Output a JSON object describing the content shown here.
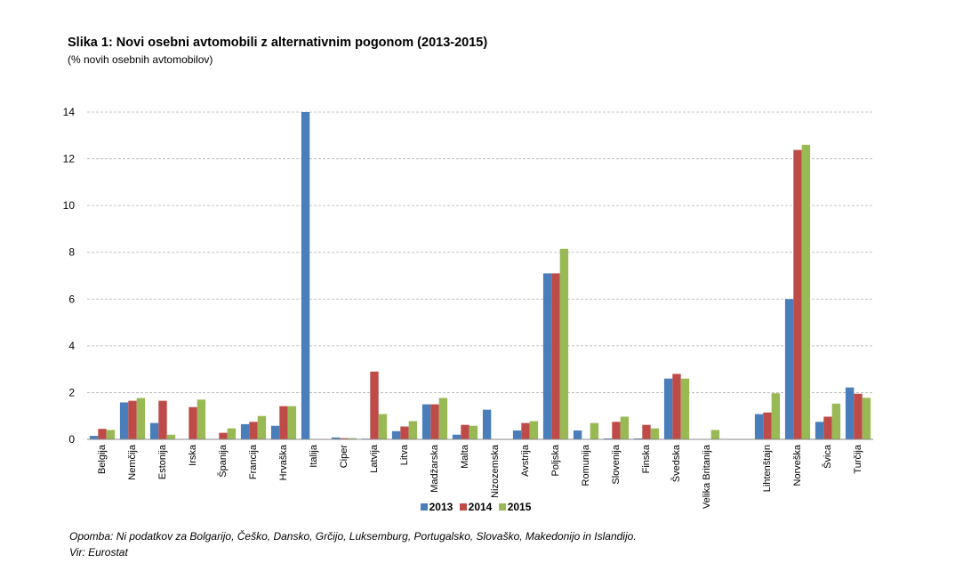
{
  "title": "Slika 1: Novi osebni avtomobili z alternativnim pogonom (2013-2015)",
  "subtitle": "(% novih osebnih avtomobilov)",
  "footnote": "Opomba: Ni podatkov za Bolgarijo, Češko, Dansko, Grčijo, Luksemburg, Portugalsko, Slovaško, Makedonijo in Islandijo.",
  "source": "Vir: Eurostat",
  "colors": {
    "2013": "#4a7ebb",
    "2014": "#be4b48",
    "2015": "#98b954",
    "grid": "#b0b0b0"
  },
  "chart_data": {
    "type": "bar",
    "title": "Slika 1: Novi osebni avtomobili z alternativnim pogonom (2013-2015)",
    "ylim": [
      0,
      14
    ],
    "yticks": [
      0,
      2,
      4,
      6,
      8,
      10,
      12,
      14
    ],
    "grid": true,
    "legend": "bottom-center",
    "categories": [
      "Belgija",
      "Nemčija",
      "Estonija",
      "Irska",
      "Španija",
      "Francija",
      "Hrvaška",
      "Italija",
      "Ciper",
      "Latvija",
      "Litva",
      "Madžarska",
      "Malta",
      "Nizozemska",
      "Avstrija",
      "Poljska",
      "Romunija",
      "Slovenija",
      "Finska",
      "Švedska",
      "Velika Britanija",
      "",
      "Lihtenštajn",
      "Norveška",
      "Švica",
      "Turčija"
    ],
    "series": [
      {
        "name": "2013",
        "values": [
          0.15,
          1.58,
          0.7,
          0,
          0,
          0.65,
          0.58,
          14.0,
          0.08,
          0.03,
          0.35,
          1.5,
          0.2,
          1.27,
          0.38,
          7.1,
          0.38,
          0.04,
          0.04,
          2.6,
          0,
          null,
          1.08,
          6.0,
          0.75,
          2.22
        ]
      },
      {
        "name": "2014",
        "values": [
          0.45,
          1.65,
          1.65,
          1.38,
          0.28,
          0.75,
          1.42,
          0,
          0.05,
          2.9,
          0.55,
          1.5,
          0.62,
          0,
          0.7,
          7.1,
          0,
          0.75,
          0.62,
          2.8,
          0,
          null,
          1.15,
          12.38,
          0.97,
          1.95
        ]
      },
      {
        "name": "2015",
        "values": [
          0.4,
          1.77,
          0.2,
          1.7,
          0.47,
          1.0,
          1.42,
          0,
          0.05,
          1.08,
          0.78,
          1.77,
          0.58,
          0,
          0.78,
          8.15,
          0.7,
          0.97,
          0.47,
          2.6,
          0.4,
          null,
          1.97,
          12.6,
          1.53,
          1.78
        ]
      }
    ]
  }
}
